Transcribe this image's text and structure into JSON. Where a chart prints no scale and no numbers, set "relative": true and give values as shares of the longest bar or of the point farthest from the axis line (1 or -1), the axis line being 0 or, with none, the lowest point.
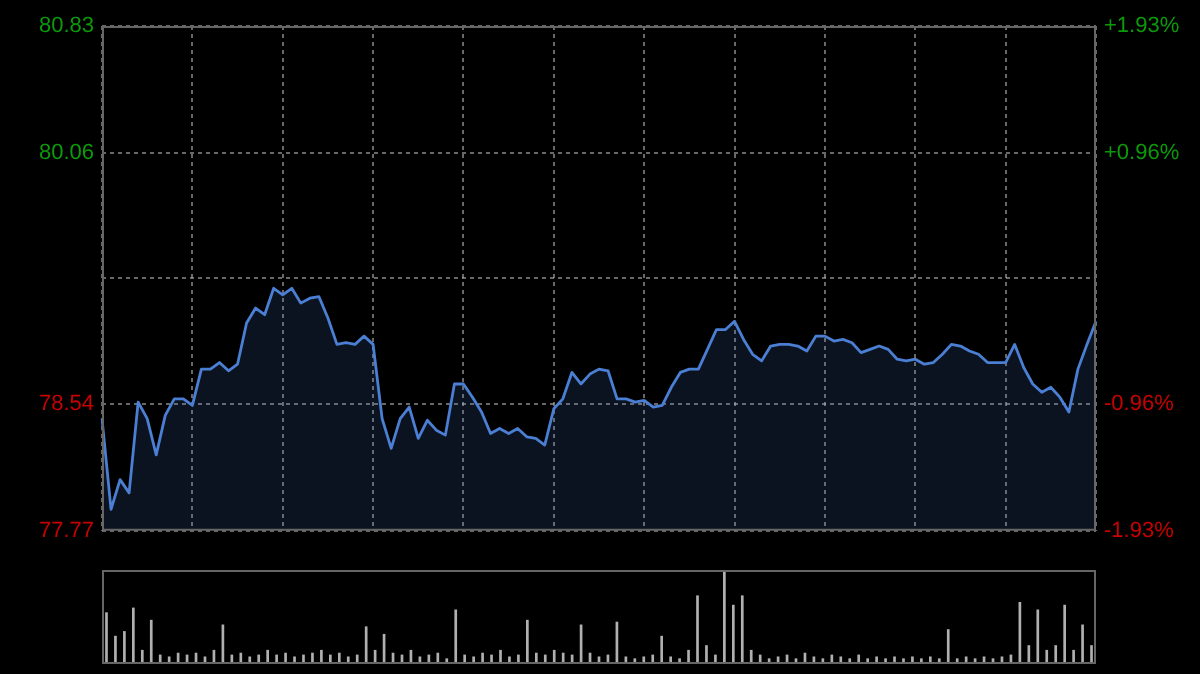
{
  "chart_data": [
    {
      "type": "area",
      "categories": [
        null,
        null,
        null,
        null,
        null,
        null,
        null,
        null,
        null,
        null,
        null,
        null,
        null,
        null,
        null,
        null,
        null,
        null,
        null,
        null,
        null,
        null,
        null,
        null,
        null,
        null,
        null,
        null,
        null,
        null,
        null,
        null,
        null,
        null,
        null,
        null,
        null,
        null,
        null,
        null,
        null,
        null,
        null,
        null,
        null,
        null,
        null,
        null,
        null,
        null,
        null,
        null,
        null,
        null,
        null,
        null,
        null,
        null,
        null,
        null,
        null,
        null,
        null,
        null,
        null,
        null,
        null,
        null,
        null,
        null,
        null,
        null,
        null,
        null,
        null,
        null,
        null,
        null,
        null,
        null,
        null,
        null,
        null,
        null,
        null,
        null,
        null,
        null,
        null,
        null,
        null,
        null,
        null,
        null,
        null,
        null,
        null,
        null,
        null,
        null,
        null,
        null,
        null,
        null,
        null,
        null,
        null,
        null,
        null,
        null,
        null
      ],
      "series": [
        {
          "color": "#4a7fd4",
          "values": [
            78.45,
            77.9,
            78.08,
            78.0,
            78.55,
            78.45,
            78.23,
            78.47,
            78.57,
            78.57,
            78.53,
            78.75,
            78.75,
            78.79,
            78.74,
            78.78,
            79.03,
            79.12,
            79.08,
            79.24,
            79.2,
            79.24,
            79.15,
            79.18,
            79.19,
            79.06,
            78.9,
            78.91,
            78.9,
            78.95,
            78.9,
            78.45,
            78.27,
            78.45,
            78.52,
            78.33,
            78.44,
            78.38,
            78.35,
            78.66,
            78.66,
            78.58,
            78.49,
            78.36,
            78.39,
            78.36,
            78.39,
            78.34,
            78.33,
            78.29,
            78.51,
            78.57,
            78.73,
            78.66,
            78.72,
            78.75,
            78.74,
            78.57,
            78.57,
            78.55,
            78.56,
            78.52,
            78.53,
            78.64,
            78.73,
            78.75,
            78.75,
            78.87,
            78.99,
            78.99,
            79.04,
            78.93,
            78.84,
            78.8,
            78.89,
            78.9,
            78.9,
            78.89,
            78.86,
            78.95,
            78.95,
            78.92,
            78.93,
            78.91,
            78.85,
            78.87,
            78.89,
            78.87,
            78.81,
            78.8,
            78.81,
            78.78,
            78.79,
            78.84,
            78.9,
            78.89,
            78.86,
            78.84,
            78.79,
            78.79,
            78.79,
            78.9,
            78.76,
            78.66,
            78.61,
            78.64,
            78.58,
            78.49,
            78.75,
            78.9,
            79.04
          ]
        }
      ],
      "ylim": [
        77.77,
        80.83
      ],
      "yticks": [
        77.77,
        78.54,
        {
          "value": 79.3,
          "label": null
        },
        80.06,
        80.83
      ],
      "y2lim": [
        -1.93,
        1.93
      ],
      "y2ticks": [
        {
          "value": -1.93,
          "label": "-1.93%"
        },
        {
          "value": -0.96,
          "label": "-0.96%"
        },
        {
          "value": 0.96,
          "label": "+0.96%"
        },
        {
          "value": 1.93,
          "label": "+1.93%"
        }
      ],
      "grid": true,
      "legend": false,
      "marker": "none",
      "line_style": "solid"
    },
    {
      "type": "bar",
      "relative": true,
      "categories": [
        null,
        null,
        null,
        null,
        null,
        null,
        null,
        null,
        null,
        null,
        null,
        null,
        null,
        null,
        null,
        null,
        null,
        null,
        null,
        null,
        null,
        null,
        null,
        null,
        null,
        null,
        null,
        null,
        null,
        null,
        null,
        null,
        null,
        null,
        null,
        null,
        null,
        null,
        null,
        null,
        null,
        null,
        null,
        null,
        null,
        null,
        null,
        null,
        null,
        null,
        null,
        null,
        null,
        null,
        null,
        null,
        null,
        null,
        null,
        null,
        null,
        null,
        null,
        null,
        null,
        null,
        null,
        null,
        null,
        null,
        null,
        null,
        null,
        null,
        null,
        null,
        null,
        null,
        null,
        null,
        null,
        null,
        null,
        null,
        null,
        null,
        null,
        null,
        null,
        null,
        null,
        null,
        null,
        null,
        null,
        null,
        null,
        null,
        null,
        null,
        null,
        null,
        null,
        null,
        null,
        null,
        null,
        null,
        null,
        null,
        null
      ],
      "color": "#b0b0b0",
      "values": [
        0.55,
        0.3,
        0.35,
        0.6,
        0.15,
        0.47,
        0.1,
        0.08,
        0.12,
        0.1,
        0.12,
        0.08,
        0.15,
        0.42,
        0.1,
        0.12,
        0.08,
        0.1,
        0.15,
        0.1,
        0.12,
        0.08,
        0.1,
        0.12,
        0.15,
        0.1,
        0.12,
        0.08,
        0.1,
        0.4,
        0.15,
        0.32,
        0.12,
        0.1,
        0.15,
        0.08,
        0.1,
        0.12,
        0.06,
        0.58,
        0.1,
        0.08,
        0.12,
        0.1,
        0.15,
        0.08,
        0.1,
        0.47,
        0.12,
        0.1,
        0.15,
        0.12,
        0.1,
        0.42,
        0.12,
        0.08,
        0.1,
        0.45,
        0.08,
        0.06,
        0.08,
        0.1,
        0.3,
        0.08,
        0.06,
        0.15,
        0.73,
        0.2,
        0.1,
        1,
        0.63,
        0.73,
        0.15,
        0.1,
        0.06,
        0.08,
        0.1,
        0.06,
        0.12,
        0.08,
        0.06,
        0.1,
        0.08,
        0.06,
        0.1,
        0.06,
        0.08,
        0.06,
        0.08,
        0.06,
        0.08,
        0.06,
        0.08,
        0.06,
        0.37,
        0.06,
        0.08,
        0.06,
        0.08,
        0.06,
        0.08,
        0.1,
        0.66,
        0.2,
        0.58,
        0.15,
        0.2,
        0.63,
        0.15,
        0.42,
        0.2
      ],
      "grid": false,
      "legend": false
    }
  ]
}
